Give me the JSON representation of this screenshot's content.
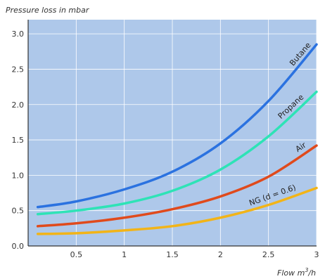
{
  "chart_data": {
    "type": "line",
    "ylabel": "Pressure loss in mbar",
    "xlabel": "Flow m",
    "xlabel_superscript": "3",
    "xlabel_suffix": "/h",
    "xlim": [
      0,
      3
    ],
    "ylim": [
      0,
      3.2
    ],
    "grid": true,
    "xticks": [
      {
        "value": 0.5,
        "label": "0.5"
      },
      {
        "value": 1,
        "label": "1"
      },
      {
        "value": 1.5,
        "label": "1.5"
      },
      {
        "value": 2,
        "label": "2"
      },
      {
        "value": 2.5,
        "label": "2.5"
      },
      {
        "value": 3,
        "label": "3"
      }
    ],
    "yticks": [
      {
        "value": 0,
        "label": "0.0"
      },
      {
        "value": 0.5,
        "label": "0.5"
      },
      {
        "value": 1.0,
        "label": "1.0"
      },
      {
        "value": 1.5,
        "label": "1.5"
      },
      {
        "value": 2.0,
        "label": "2.0"
      },
      {
        "value": 2.5,
        "label": "2.5"
      },
      {
        "value": 3.0,
        "label": "3.0"
      }
    ],
    "colors": {
      "background": "#aec8ea",
      "grid": "#ffffff",
      "Butane": "#2b72e0",
      "Propane": "#2ee3b6",
      "Air": "#e04a1c",
      "NG": "#f2b418"
    },
    "series": [
      {
        "name": "Butane",
        "x": [
          0.1,
          0.5,
          1.0,
          1.5,
          2.0,
          2.5,
          3.0
        ],
        "y": [
          0.55,
          0.63,
          0.8,
          1.05,
          1.45,
          2.05,
          2.85
        ]
      },
      {
        "name": "Propane",
        "x": [
          0.1,
          0.5,
          1.0,
          1.5,
          2.0,
          2.5,
          3.0
        ],
        "y": [
          0.45,
          0.5,
          0.6,
          0.78,
          1.08,
          1.55,
          2.18
        ]
      },
      {
        "name": "Air",
        "x": [
          0.1,
          0.5,
          1.0,
          1.5,
          2.0,
          2.5,
          3.0
        ],
        "y": [
          0.28,
          0.32,
          0.4,
          0.52,
          0.7,
          0.98,
          1.42
        ]
      },
      {
        "name": "NG (d = 0.6)",
        "x": [
          0.1,
          0.5,
          1.0,
          1.5,
          2.0,
          2.5,
          3.0
        ],
        "y": [
          0.17,
          0.18,
          0.22,
          0.28,
          0.4,
          0.58,
          0.82
        ]
      }
    ]
  }
}
